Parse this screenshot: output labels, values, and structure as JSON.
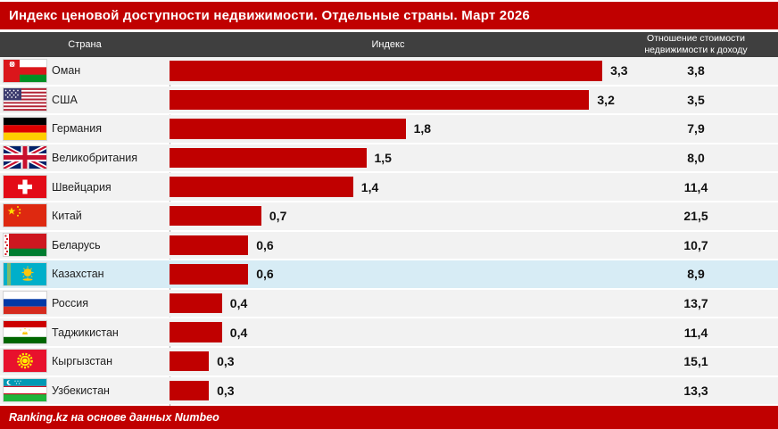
{
  "title": "Индекс ценовой доступности недвижимости. Отдельные страны. Март 2026",
  "columns": {
    "country": "Страна",
    "index": "Индекс",
    "ratio": "Отношение стоимости недвижимости к доходу"
  },
  "footer": "Ranking.kz на основе данных Numbeo",
  "colors": {
    "accent_red": "#c00000",
    "header_gray": "#3f3f3f",
    "row_bg": "#f2f2f2",
    "highlight_blue": "#d7ecf5"
  },
  "chart_data": {
    "type": "bar",
    "orientation": "horizontal",
    "title": "Индекс ценовой доступности недвижимости. Отдельные страны. Март 2026",
    "categories": [
      "Оман",
      "США",
      "Германия",
      "Великобритания",
      "Швейцария",
      "Китай",
      "Беларусь",
      "Казахстан",
      "Россия",
      "Таджикистан",
      "Кыргызстан",
      "Узбекистан"
    ],
    "series": [
      {
        "name": "Индекс",
        "values": [
          3.3,
          3.2,
          1.8,
          1.5,
          1.4,
          0.7,
          0.6,
          0.6,
          0.4,
          0.4,
          0.3,
          0.3
        ]
      },
      {
        "name": "Отношение стоимости недвижимости к доходу",
        "values": [
          3.8,
          3.5,
          7.9,
          8.0,
          11.4,
          21.5,
          10.7,
          8.9,
          13.7,
          11.4,
          15.1,
          13.3
        ]
      }
    ],
    "xlim": [
      0,
      3.5
    ],
    "bar_color": "#c00000",
    "highlighted_category": "Казахстан",
    "legend_position": "none",
    "grid": false,
    "source": "Ranking.kz на основе данных Numbeo"
  },
  "rows": [
    {
      "country": "Оман",
      "flag": "om",
      "index": 3.3,
      "index_label": "3,3",
      "ratio_label": "3,8",
      "highlighted": false
    },
    {
      "country": "США",
      "flag": "us",
      "index": 3.2,
      "index_label": "3,2",
      "ratio_label": "3,5",
      "highlighted": false
    },
    {
      "country": "Германия",
      "flag": "de",
      "index": 1.8,
      "index_label": "1,8",
      "ratio_label": "7,9",
      "highlighted": false
    },
    {
      "country": "Великобритания",
      "flag": "gb",
      "index": 1.5,
      "index_label": "1,5",
      "ratio_label": "8,0",
      "highlighted": false
    },
    {
      "country": "Швейцария",
      "flag": "ch",
      "index": 1.4,
      "index_label": "1,4",
      "ratio_label": "11,4",
      "highlighted": false
    },
    {
      "country": "Китай",
      "flag": "cn",
      "index": 0.7,
      "index_label": "0,7",
      "ratio_label": "21,5",
      "highlighted": false
    },
    {
      "country": "Беларусь",
      "flag": "by",
      "index": 0.6,
      "index_label": "0,6",
      "ratio_label": "10,7",
      "highlighted": false
    },
    {
      "country": "Казахстан",
      "flag": "kz",
      "index": 0.6,
      "index_label": "0,6",
      "ratio_label": "8,9",
      "highlighted": true
    },
    {
      "country": "Россия",
      "flag": "ru",
      "index": 0.4,
      "index_label": "0,4",
      "ratio_label": "13,7",
      "highlighted": false
    },
    {
      "country": "Таджикистан",
      "flag": "tj",
      "index": 0.4,
      "index_label": "0,4",
      "ratio_label": "11,4",
      "highlighted": false
    },
    {
      "country": "Кыргызстан",
      "flag": "kg",
      "index": 0.3,
      "index_label": "0,3",
      "ratio_label": "15,1",
      "highlighted": false
    },
    {
      "country": "Узбекистан",
      "flag": "uz",
      "index": 0.3,
      "index_label": "0,3",
      "ratio_label": "13,3",
      "highlighted": false
    }
  ]
}
